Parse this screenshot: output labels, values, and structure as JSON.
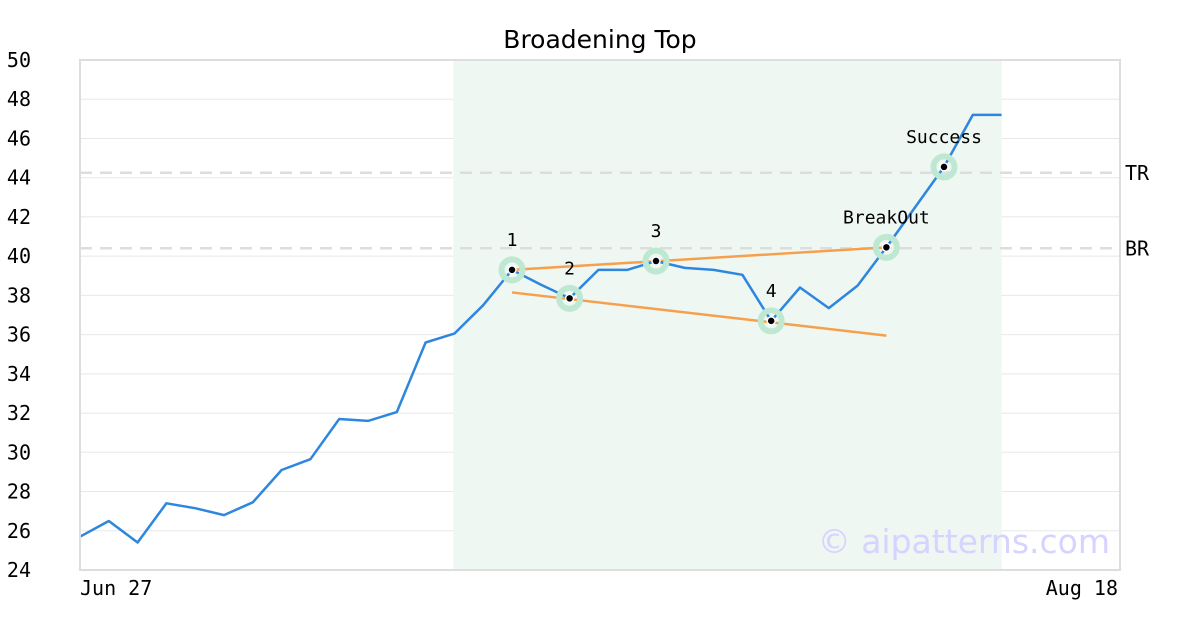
{
  "chart_data": {
    "type": "line",
    "title": "Broadening Top",
    "watermark": "© aipatterns.com",
    "ylim": [
      24,
      50
    ],
    "y_ticks": [
      24,
      26,
      28,
      30,
      32,
      34,
      36,
      38,
      40,
      42,
      44,
      46,
      48,
      50
    ],
    "x_range": [
      "Jun 27",
      "Aug 18"
    ],
    "x_tick_labels": [
      "Jun 27",
      "Aug 18"
    ],
    "grid": true,
    "colors": {
      "price": "#2e86de",
      "trendline": "#f6a04d",
      "highlight": "#eef7f2",
      "marker_ring": "#bfe8d2",
      "reference": "#dddddd",
      "watermark": "#d5d3ff"
    },
    "series": [
      {
        "values": [
          [
            "Jun 27",
            25.7
          ],
          [
            "Jun 28",
            26.5
          ],
          [
            "Jun 29",
            25.4
          ],
          [
            "Jun 30",
            27.4
          ],
          [
            "Jul 1",
            27.15
          ],
          [
            "Jul 2",
            26.8
          ],
          [
            "Jul 3",
            27.45
          ],
          [
            "Jul 4",
            29.1
          ],
          [
            "Jul 5",
            29.65
          ],
          [
            "Jul 6",
            31.7
          ],
          [
            "Jul 7",
            31.6
          ],
          [
            "Jul 8",
            32.05
          ],
          [
            "Jul 9",
            35.6
          ],
          [
            "Jul 10",
            36.05
          ],
          [
            "Jul 11",
            37.5
          ],
          [
            "Jul 12",
            39.3
          ],
          [
            "Jul 13",
            38.55
          ],
          [
            "Jul 14",
            37.85
          ],
          [
            "Jul 15",
            39.3
          ],
          [
            "Jul 16",
            39.3
          ],
          [
            "Jul 17",
            39.75
          ],
          [
            "Jul 18",
            39.4
          ],
          [
            "Jul 19",
            39.3
          ],
          [
            "Jul 20",
            39.05
          ],
          [
            "Jul 21",
            36.7
          ],
          [
            "Jul 22",
            38.4
          ],
          [
            "Jul 23",
            37.35
          ],
          [
            "Jul 24",
            38.5
          ],
          [
            "Jul 25",
            40.45
          ],
          [
            "Jul 26",
            42.5
          ],
          [
            "Jul 27",
            44.55
          ],
          [
            "Jul 28",
            47.2
          ],
          [
            "Jul 29",
            47.2
          ]
        ]
      }
    ],
    "highlight_range": [
      "Jul 10",
      "Jul 29"
    ],
    "reference_lines": [
      {
        "label": "TR",
        "y": 44.25
      },
      {
        "label": "BR",
        "y": 40.4
      }
    ],
    "trendlines": [
      {
        "from": [
          "Jul 12",
          39.3
        ],
        "to": [
          "Jul 25",
          40.45
        ]
      },
      {
        "from": [
          "Jul 12",
          38.15
        ],
        "to": [
          "Jul 25",
          35.95
        ]
      }
    ],
    "annotations": [
      {
        "label": "1",
        "x": "Jul 12",
        "y": 39.3
      },
      {
        "label": "2",
        "x": "Jul 14",
        "y": 37.85
      },
      {
        "label": "3",
        "x": "Jul 17",
        "y": 39.75
      },
      {
        "label": "4",
        "x": "Jul 21",
        "y": 36.7
      },
      {
        "label": "BreakOut",
        "x": "Jul 25",
        "y": 40.45
      },
      {
        "label": "Success",
        "x": "Jul 27",
        "y": 44.55
      }
    ]
  }
}
